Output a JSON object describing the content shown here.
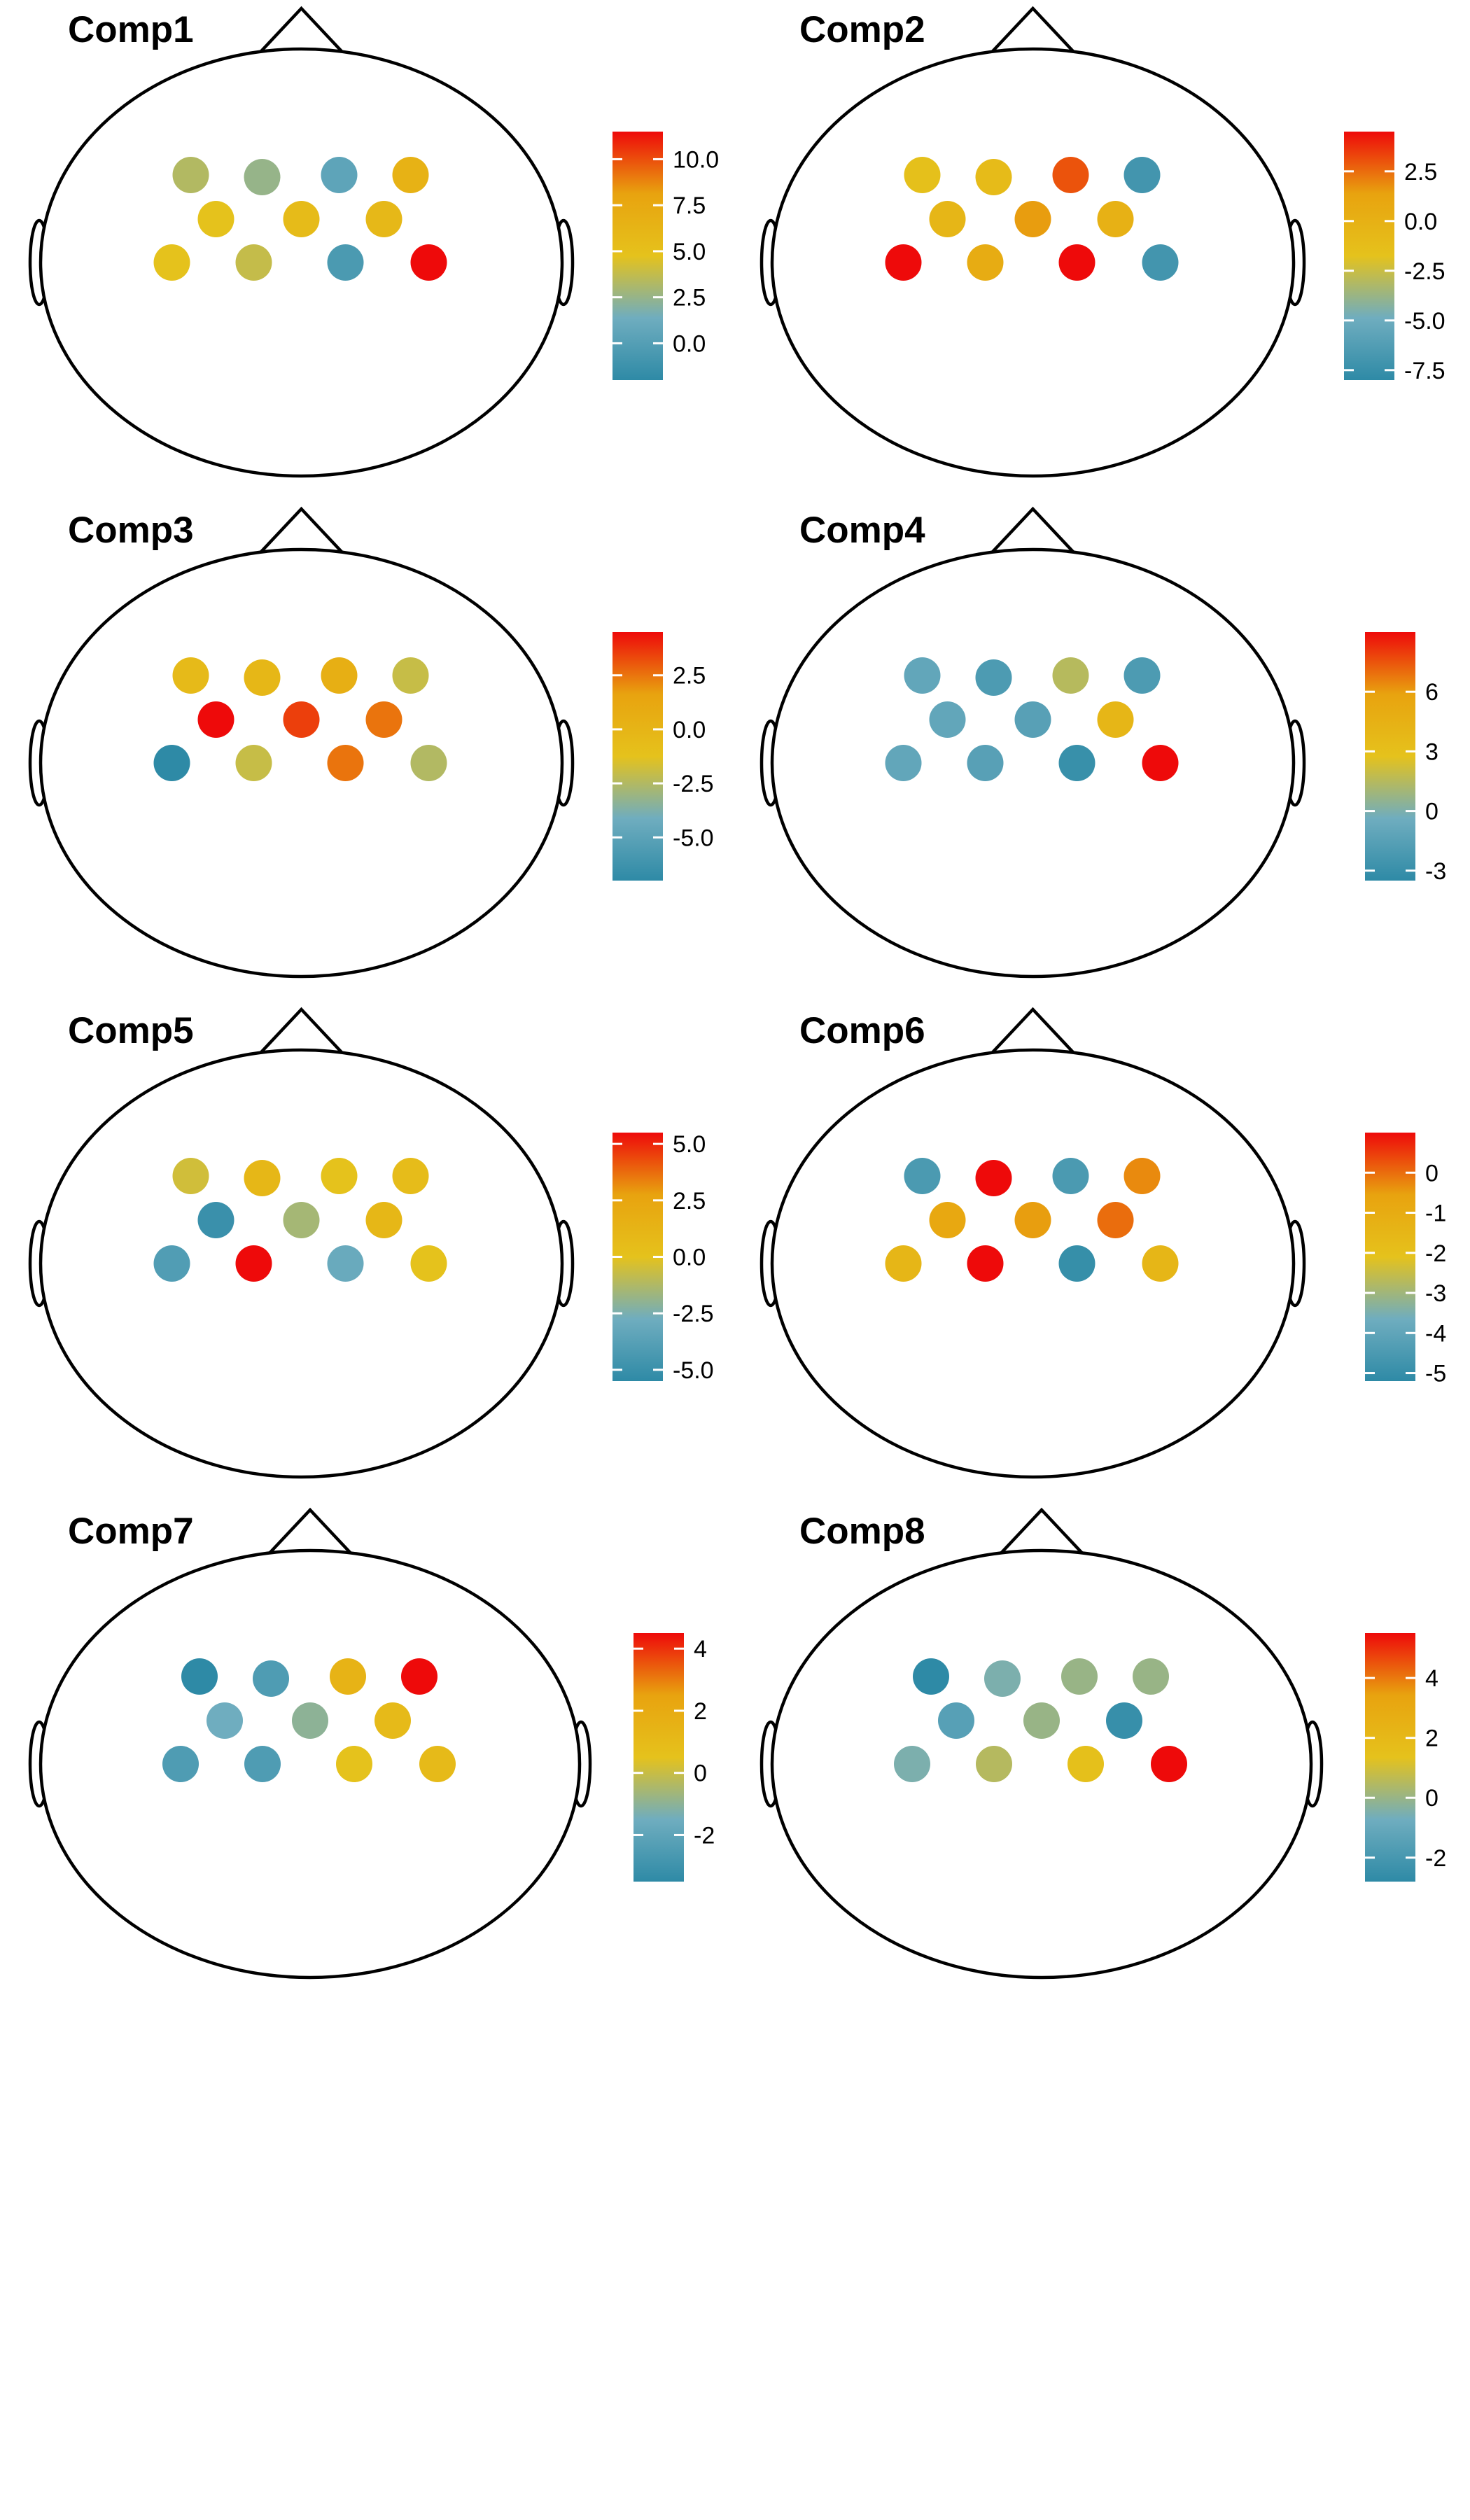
{
  "palette": [
    "#2e8aa6",
    "#6fadbf",
    "#e5c21c",
    "#e8a30f",
    "#ee0a0a"
  ],
  "electrode_rows": [
    4,
    3,
    4
  ],
  "chart_data": [
    {
      "type": "topoplot",
      "title": "Comp1",
      "colorbar": {
        "min": -2.0,
        "max": 11.5,
        "ticks": [
          0.0,
          2.5,
          5.0,
          7.5,
          10.0
        ],
        "tick_labels": [
          "0.0",
          "2.5",
          "5.0",
          "7.5",
          "10.0"
        ]
      },
      "values": [
        3.3,
        2.5,
        0.5,
        6.5,
        4.8,
        5.5,
        5.8,
        4.8,
        3.8,
        -0.5,
        11.5
      ]
    },
    {
      "type": "topoplot",
      "title": "Comp2",
      "colorbar": {
        "min": -8.0,
        "max": 4.5,
        "ticks": [
          -7.5,
          -5.0,
          -2.5,
          0.0,
          2.5
        ],
        "tick_labels": [
          "-7.5",
          "-5.0",
          "-2.5",
          "0.0",
          "2.5"
        ]
      },
      "values": [
        -1.5,
        -1.0,
        3.0,
        -7.0,
        -0.5,
        1.5,
        0.0,
        4.5,
        0.5,
        4.5,
        -7.0
      ]
    },
    {
      "type": "topoplot",
      "title": "Comp3",
      "colorbar": {
        "min": -7.0,
        "max": 4.5,
        "ticks": [
          -5.0,
          -2.5,
          0.0,
          2.5
        ],
        "tick_labels": [
          "-5.0",
          "-2.5",
          "0.0",
          "2.5"
        ]
      },
      "values": [
        -0.5,
        -0.2,
        0.5,
        -2.0,
        4.5,
        3.5,
        2.5,
        -7.0,
        -2.0,
        2.5,
        -2.5
      ]
    },
    {
      "type": "topoplot",
      "title": "Comp4",
      "colorbar": {
        "min": -3.5,
        "max": 9.0,
        "ticks": [
          -3,
          0,
          3,
          6
        ],
        "tick_labels": [
          "-3",
          "0",
          "3",
          "6"
        ]
      },
      "values": [
        -1.0,
        -2.0,
        1.5,
        -2.0,
        -1.0,
        -1.5,
        4.0,
        -1.0,
        -1.5,
        -3.0,
        9.0
      ]
    },
    {
      "type": "topoplot",
      "title": "Comp5",
      "colorbar": {
        "min": -5.5,
        "max": 5.5,
        "ticks": [
          -5.0,
          -2.5,
          0.0,
          2.5,
          5.0
        ],
        "tick_labels": [
          "-5.0",
          "-2.5",
          "0.0",
          "2.5",
          "5.0"
        ]
      },
      "values": [
        -0.5,
        1.0,
        0.0,
        0.5,
        -5.0,
        -1.5,
        1.0,
        -4.0,
        5.5,
        -3.0,
        0.0
      ]
    },
    {
      "type": "topoplot",
      "title": "Comp6",
      "colorbar": {
        "min": -5.2,
        "max": 1.0,
        "ticks": [
          -5,
          -4,
          -3,
          -2,
          -1,
          0
        ],
        "tick_labels": [
          "-5",
          "-4",
          "-3",
          "-2",
          "-1",
          "0"
        ]
      },
      "values": [
        -4.5,
        1.0,
        -4.5,
        -0.3,
        -0.8,
        -0.5,
        0.0,
        -1.5,
        1.0,
        -5.0,
        -1.5
      ]
    },
    {
      "type": "topoplot",
      "title": "Comp7",
      "colorbar": {
        "min": -3.5,
        "max": 4.5,
        "ticks": [
          -2,
          0,
          2,
          4
        ],
        "tick_labels": [
          "-2",
          "0",
          "2",
          "4"
        ]
      },
      "values": [
        -3.5,
        -2.5,
        1.5,
        4.5,
        -1.5,
        -1.0,
        1.0,
        -2.5,
        -2.5,
        0.5,
        1.0
      ]
    },
    {
      "type": "topoplot",
      "title": "Comp8",
      "colorbar": {
        "min": -2.8,
        "max": 5.5,
        "ticks": [
          -2,
          0,
          2,
          4
        ],
        "tick_labels": [
          "-2",
          "0",
          "2",
          "4"
        ]
      },
      "values": [
        -2.8,
        -0.5,
        0.0,
        0.0,
        -1.5,
        0.0,
        -2.5,
        -0.5,
        0.5,
        1.5,
        5.5
      ]
    }
  ]
}
